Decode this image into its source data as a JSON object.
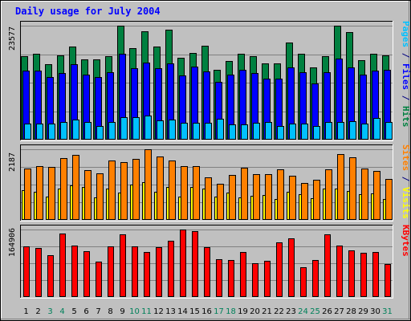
{
  "chart_data": {
    "type": "bar",
    "title": "Daily usage for July 2004",
    "days": [
      "1",
      "2",
      "3",
      "4",
      "5",
      "6",
      "7",
      "8",
      "9",
      "10",
      "11",
      "12",
      "13",
      "14",
      "15",
      "16",
      "17",
      "18",
      "19",
      "20",
      "21",
      "22",
      "23",
      "24",
      "25",
      "26",
      "27",
      "28",
      "29",
      "30",
      "31"
    ],
    "weekend_days": [
      "3",
      "4",
      "10",
      "11",
      "17",
      "18",
      "24",
      "25",
      "31"
    ],
    "panels": [
      {
        "id": "traffic",
        "ymax": 23577,
        "ymax_label": "23577",
        "right_label": [
          {
            "text": "Pages",
            "color": "#00c0ff"
          },
          {
            "text": " / ",
            "color": "#000080"
          },
          {
            "text": "Files",
            "color": "#0000ff"
          },
          {
            "text": " / ",
            "color": "#000080"
          },
          {
            "text": "Hits",
            "color": "#008040"
          }
        ],
        "series": [
          {
            "name": "Hits",
            "color": "#008040",
            "values": [
              17300,
              17800,
              15600,
              17500,
              19200,
              16600,
              16600,
              17300,
              23577,
              19000,
              22400,
              19300,
              22800,
              16900,
              17900,
              19400,
              14400,
              16200,
              17800,
              17300,
              15800,
              15700,
              20100,
              17700,
              14900,
              17200,
              23600,
              22200,
              16500,
              17700,
              17500
            ]
          },
          {
            "name": "Files",
            "color": "#0000ff",
            "values": [
              14200,
              14200,
              13000,
              13700,
              15600,
              13400,
              12900,
              13900,
              17700,
              14700,
              15900,
              14700,
              15700,
              13200,
              15100,
              14100,
              12000,
              13400,
              14500,
              13700,
              12600,
              12600,
              15000,
              13900,
              11700,
              13900,
              16800,
              15000,
              13400,
              14200,
              14400
            ]
          },
          {
            "name": "Pages",
            "color": "#00c0ff",
            "values": [
              3300,
              3400,
              3300,
              3700,
              4200,
              3700,
              2900,
              3600,
              4600,
              4700,
              4900,
              4000,
              4200,
              3500,
              3500,
              3500,
              4300,
              3200,
              3100,
              3500,
              3600,
              2900,
              3300,
              3300,
              2900,
              3600,
              3600,
              3800,
              3300,
              4400,
              3700
            ]
          }
        ]
      },
      {
        "id": "visits",
        "ymax": 2187,
        "ymax_label": "2187",
        "right_label": [
          {
            "text": "Sites",
            "color": "#ff8000"
          },
          {
            "text": " / ",
            "color": "#000080"
          },
          {
            "text": "Visits",
            "color": "#ffff00"
          }
        ],
        "series": [
          {
            "name": "Visits",
            "color": "#ffff00",
            "values": [
              920,
              870,
              730,
              980,
              1070,
              1010,
              690,
              970,
              850,
              1100,
              1180,
              870,
              1030,
              730,
              1010,
              960,
              730,
              850,
              690,
              740,
              780,
              640,
              880,
              790,
              660,
              980,
              960,
              900,
              790,
              830,
              640
            ]
          },
          {
            "name": "Sites",
            "color": "#ff8000",
            "values": [
              1580,
              1660,
              1650,
              1910,
              2020,
              1530,
              1430,
              1850,
              1790,
              1890,
              2187,
              1970,
              1830,
              1660,
              1670,
              1320,
              1120,
              1390,
              1610,
              1410,
              1420,
              1560,
              1370,
              1150,
              1250,
              1560,
              2050,
              1950,
              1580,
              1520,
              1260
            ]
          }
        ]
      },
      {
        "id": "kbytes",
        "ymax": 164906,
        "ymax_label": "164906",
        "right_label": [
          {
            "text": "KBytes",
            "color": "#ff0000"
          }
        ],
        "series": [
          {
            "name": "KBytes",
            "color": "#ff0000",
            "values": [
              124000,
              119000,
              102000,
              155000,
              126000,
              112000,
              87000,
              124000,
              153000,
              124000,
              110000,
              121000,
              137000,
              165000,
              160000,
              121000,
              92000,
              90000,
              109000,
              82000,
              88000,
              134000,
              144000,
              73000,
              91000,
              153000,
              126000,
              113000,
              108000,
              109000,
              80000
            ]
          }
        ]
      }
    ]
  }
}
